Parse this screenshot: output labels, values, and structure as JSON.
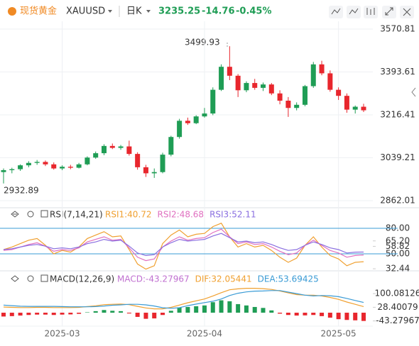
{
  "header": {
    "name": "现货黄金",
    "symbol": "XAUUSD",
    "period": "日K",
    "price": 3235.25,
    "change": -14.76,
    "change_pct": "-0.45%"
  },
  "chart_data": [
    {
      "type": "candlestick",
      "up_color": "#1f9d55",
      "down_color": "#e8262d",
      "categories": [
        null,
        null,
        null,
        null,
        null,
        null,
        null,
        "2025-03",
        null,
        null,
        null,
        null,
        null,
        null,
        null,
        null,
        null,
        null,
        null,
        null,
        null,
        null,
        null,
        null,
        "2025-04",
        null,
        null,
        null,
        null,
        null,
        null,
        null,
        null,
        null,
        null,
        null,
        null,
        null,
        null,
        null,
        "2025-05",
        null,
        null,
        null
      ],
      "ohlc": [
        [
          2980,
          2995,
          2932.89,
          2988
        ],
        [
          2988,
          2998,
          2975,
          2992
        ],
        [
          2992,
          3012,
          2985,
          3008
        ],
        [
          3008,
          3025,
          3000,
          3018
        ],
        [
          3018,
          3030,
          3010,
          3022
        ],
        [
          3022,
          3028,
          3005,
          3012
        ],
        [
          3012,
          3020,
          2990,
          2995
        ],
        [
          2995,
          3008,
          2988,
          3002
        ],
        [
          3002,
          3010,
          2992,
          2998
        ],
        [
          2998,
          3018,
          2995,
          3012
        ],
        [
          3012,
          3045,
          3008,
          3040
        ],
        [
          3040,
          3065,
          3035,
          3058
        ],
        [
          3058,
          3095,
          3050,
          3088
        ],
        [
          3088,
          3098,
          3075,
          3080
        ],
        [
          3080,
          3092,
          3072,
          3086
        ],
        [
          3086,
          3110,
          3048,
          3055
        ],
        [
          3055,
          3062,
          2990,
          3000
        ],
        [
          3000,
          3010,
          2960,
          2975
        ],
        [
          2975,
          2995,
          2956,
          2980
        ],
        [
          2980,
          3060,
          2975,
          3052
        ],
        [
          3052,
          3130,
          3045,
          3125
        ],
        [
          3125,
          3200,
          3118,
          3192
        ],
        [
          3192,
          3205,
          3175,
          3182
        ],
        [
          3182,
          3215,
          3178,
          3210
        ],
        [
          3210,
          3245,
          3205,
          3222
        ],
        [
          3222,
          3330,
          3215,
          3320
        ],
        [
          3320,
          3425,
          3315,
          3415
        ],
        [
          3415,
          3499.93,
          3360,
          3378
        ],
        [
          3378,
          3385,
          3290,
          3318
        ],
        [
          3318,
          3355,
          3310,
          3348
        ],
        [
          3348,
          3365,
          3320,
          3328
        ],
        [
          3328,
          3350,
          3315,
          3342
        ],
        [
          3342,
          3348,
          3298,
          3305
        ],
        [
          3305,
          3318,
          3260,
          3275
        ],
        [
          3275,
          3290,
          3208,
          3245
        ],
        [
          3245,
          3268,
          3235,
          3258
        ],
        [
          3258,
          3340,
          3252,
          3335
        ],
        [
          3335,
          3435,
          3328,
          3425
        ],
        [
          3425,
          3440,
          3380,
          3388
        ],
        [
          3388,
          3400,
          3312,
          3320
        ],
        [
          3320,
          3330,
          3278,
          3295
        ],
        [
          3295,
          3305,
          3225,
          3238
        ],
        [
          3238,
          3255,
          3222,
          3250
        ],
        [
          3250,
          3262,
          3228,
          3235.25
        ]
      ],
      "ylim": [
        2835.65,
        3603.03
      ],
      "yticks": [
        2862.01,
        3039.21,
        3216.41,
        3393.61,
        3570.81
      ],
      "grid": true,
      "annotations": [
        "3499.93",
        "2932.89"
      ]
    },
    {
      "type": "line",
      "title": "RSI(7,14,21)",
      "ylim": [
        30.83,
        101.67
      ],
      "yticks": [
        {
          "value": 80,
          "label": "80.00"
        },
        {
          "value": 65.2,
          "label": "65.20"
        },
        58.82,
        {
          "value": 50,
          "label": "50.00"
        },
        32.44
      ],
      "reference_lines": [
        80,
        50
      ],
      "reference_color": "#3a9bd5",
      "series": [
        {
          "name": "RSI1:40.72",
          "color": "#f0a030",
          "values": [
            55,
            58,
            62,
            66,
            68,
            60,
            50,
            54,
            52,
            58,
            68,
            72,
            76,
            70,
            71,
            55,
            38,
            32,
            36,
            62,
            72,
            78,
            70,
            73,
            74,
            82,
            86,
            70,
            58,
            62,
            58,
            60,
            54,
            46,
            40,
            45,
            60,
            70,
            58,
            48,
            44,
            36,
            40,
            40.72
          ]
        },
        {
          "name": "RSI2:48.68",
          "color": "#e070c0",
          "values": [
            54,
            55,
            58,
            61,
            63,
            59,
            53,
            55,
            54,
            57,
            64,
            67,
            70,
            66,
            67,
            57,
            46,
            42,
            44,
            58,
            65,
            70,
            66,
            68,
            69,
            75,
            79,
            70,
            62,
            64,
            61,
            62,
            58,
            53,
            49,
            51,
            60,
            66,
            60,
            54,
            51,
            46,
            48,
            48.68
          ]
        },
        {
          "name": "RSI3:52.11",
          "color": "#8a6fe0",
          "values": [
            55,
            56,
            58,
            60,
            61,
            59,
            56,
            57,
            56,
            58,
            62,
            64,
            67,
            65,
            66,
            59,
            51,
            48,
            49,
            58,
            63,
            67,
            65,
            66,
            67,
            71,
            74,
            69,
            64,
            65,
            63,
            64,
            61,
            57,
            54,
            55,
            60,
            64,
            61,
            57,
            55,
            51,
            52,
            52.11
          ]
        }
      ]
    },
    {
      "type": "macd",
      "title": "MACD(12,26,9)",
      "ylim": [
        -104,
        212
      ],
      "yticks": [
        100.08126,
        28.40079,
        -43.27967
      ],
      "up_color": "#1f9d55",
      "down_color": "#e8262d",
      "series": [
        {
          "name": "MACD:-43.27967",
          "color": "#c070d0",
          "kind": "bar",
          "values": [
            -20,
            -18,
            -15,
            -12,
            -10,
            -10,
            -12,
            -10,
            -9,
            -6,
            2,
            8,
            14,
            10,
            8,
            -4,
            -22,
            -32,
            -30,
            -12,
            10,
            28,
            30,
            34,
            38,
            55,
            65,
            60,
            45,
            38,
            30,
            25,
            12,
            -5,
            -12,
            -15,
            -14,
            -12,
            -18,
            -26,
            -34,
            -38,
            -40,
            -43.27967
          ]
        },
        {
          "name": "DIF:32.05441",
          "color": "#f0a030",
          "kind": "line",
          "values": [
            30,
            28,
            27,
            27,
            28,
            28,
            27,
            27,
            27,
            28,
            32,
            36,
            42,
            44,
            45,
            42,
            33,
            25,
            20,
            20,
            28,
            40,
            52,
            62,
            72,
            88,
            105,
            120,
            125,
            128,
            128,
            126,
            122,
            114,
            104,
            95,
            92,
            92,
            88,
            80,
            70,
            56,
            44,
            32.05441
          ]
        },
        {
          "name": "DEA:53.69425",
          "color": "#3a9bd5",
          "kind": "line",
          "values": [
            40,
            37,
            34,
            33,
            33,
            33,
            33,
            32,
            31,
            31,
            31,
            32,
            35,
            39,
            41,
            44,
            44,
            41,
            35,
            26,
            23,
            26,
            37,
            45,
            53,
            60,
            72,
            90,
            102,
            109,
            113,
            114,
            116,
            116,
            108,
            100,
            92,
            88,
            90,
            89,
            84,
            75,
            64,
            53.69425
          ]
        }
      ]
    }
  ]
}
